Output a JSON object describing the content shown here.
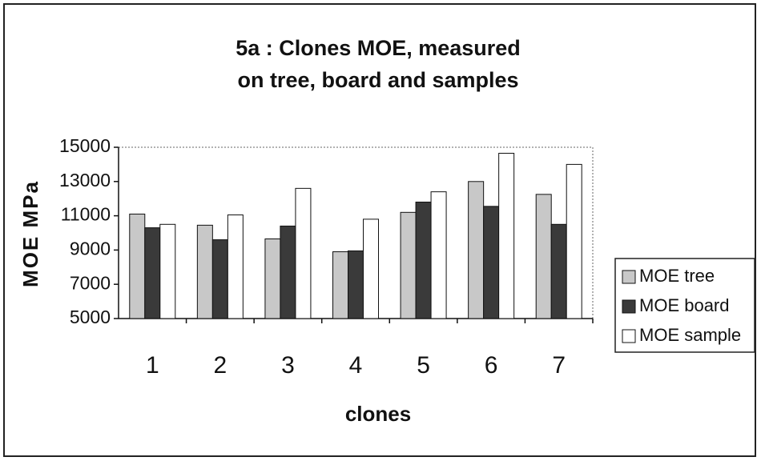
{
  "chart_data": {
    "type": "bar",
    "title": "5a  : Clones MOE, measured",
    "subtitle": "on tree, board and samples",
    "xlabel": "clones",
    "ylabel": "MOE MPa",
    "categories": [
      "1",
      "2",
      "3",
      "4",
      "5",
      "6",
      "7"
    ],
    "series": [
      {
        "name": "MOE tree",
        "color": "#c8c8c8",
        "values": [
          11100,
          10450,
          9650,
          8900,
          11200,
          13000,
          12250
        ]
      },
      {
        "name": "MOE board",
        "color": "#3a3a3a",
        "values": [
          10300,
          9600,
          10400,
          8950,
          11800,
          11550,
          10500
        ]
      },
      {
        "name": "MOE sample",
        "color": "#ffffff",
        "values": [
          10500,
          11050,
          12600,
          10800,
          12400,
          14650,
          14000
        ]
      }
    ],
    "ylim": [
      5000,
      15000
    ],
    "yticks": [
      5000,
      7000,
      9000,
      11000,
      13000,
      15000
    ],
    "grid": false,
    "legend": "right"
  }
}
